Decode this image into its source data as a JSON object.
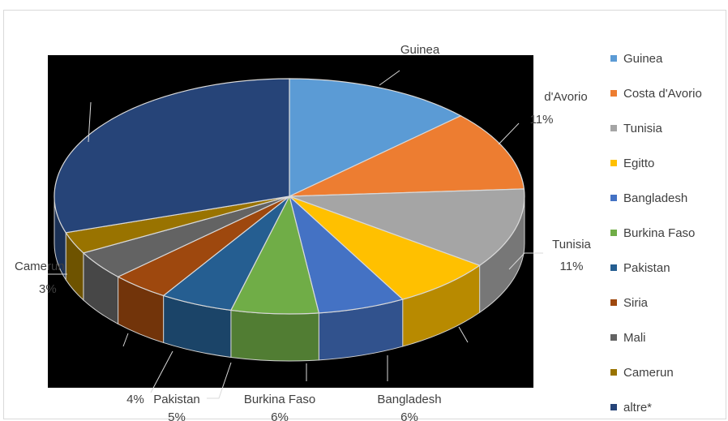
{
  "chart_data": {
    "type": "pie",
    "style": "3d",
    "legend_position": "right",
    "series": [
      {
        "name": "Guinea",
        "value": 13,
        "color": "#5b9bd5",
        "label_name": "Guinea",
        "label_pct": ""
      },
      {
        "name": "Costa d'Avorio",
        "value": 11,
        "color": "#ed7d31",
        "label_name": "d'Avorio",
        "label_pct": "11%"
      },
      {
        "name": "Tunisia",
        "value": 11,
        "color": "#a5a5a5",
        "label_name": "Tunisia",
        "label_pct": "11%"
      },
      {
        "name": "Egitto",
        "value": 7,
        "color": "#ffc000",
        "label_name": "",
        "label_pct": ""
      },
      {
        "name": "Bangladesh",
        "value": 6,
        "color": "#4472c4",
        "label_name": "Bangladesh",
        "label_pct": "6%"
      },
      {
        "name": "Burkina Faso",
        "value": 6,
        "color": "#70ad47",
        "label_name": "Burkina Faso",
        "label_pct": "6%"
      },
      {
        "name": "Pakistan",
        "value": 5,
        "color": "#255e91",
        "label_name": "Pakistan",
        "label_pct": "5%"
      },
      {
        "name": "Siria",
        "value": 4,
        "color": "#9e480e",
        "label_name": "",
        "label_pct": "4%"
      },
      {
        "name": "Mali",
        "value": 4,
        "color": "#636363",
        "label_name": "",
        "label_pct": ""
      },
      {
        "name": "Camerun",
        "value": 3,
        "color": "#997300",
        "label_name": "Camerun",
        "label_pct": "3%"
      },
      {
        "name": "altre*",
        "value": 30,
        "color": "#264478",
        "label_name": "",
        "label_pct": ""
      }
    ]
  }
}
